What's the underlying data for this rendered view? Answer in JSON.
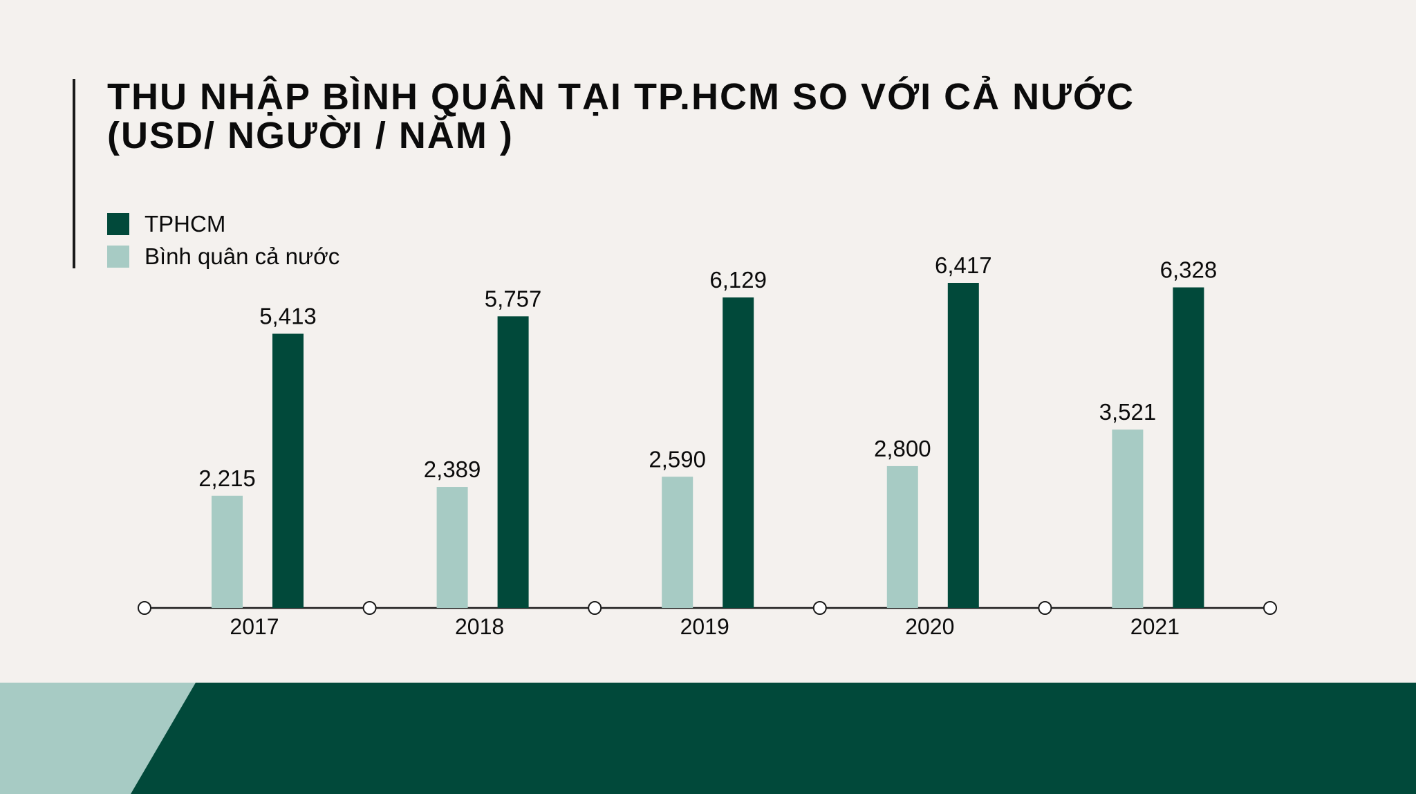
{
  "chart_data": {
    "type": "bar",
    "title_line1": "THU NHẬP BÌNH QUÂN TẠI TP.HCM SO VỚI CẢ NƯỚC",
    "title_line2": "(USD/ NGƯỜI / NĂM )",
    "categories": [
      "2017",
      "2018",
      "2019",
      "2020",
      "2021"
    ],
    "series": [
      {
        "name": "Bình quân cả nước",
        "color": "#a7cbc4",
        "values": [
          2215,
          2389,
          2590,
          2800,
          3521
        ],
        "labels": [
          "2,215",
          "2,389",
          "2,590",
          "2,800",
          "3,521"
        ]
      },
      {
        "name": "TPHCM",
        "color": "#01493a",
        "values": [
          5413,
          5757,
          6129,
          6417,
          6328
        ],
        "labels": [
          "5,413",
          "5,757",
          "6,129",
          "6,417",
          "6,328"
        ]
      }
    ],
    "legend": [
      "TPHCM",
      "Bình quân cả nước"
    ],
    "legend_position": "top-left",
    "xlabel": "",
    "ylabel": "",
    "ylim": [
      0,
      6500
    ],
    "grid": false
  }
}
